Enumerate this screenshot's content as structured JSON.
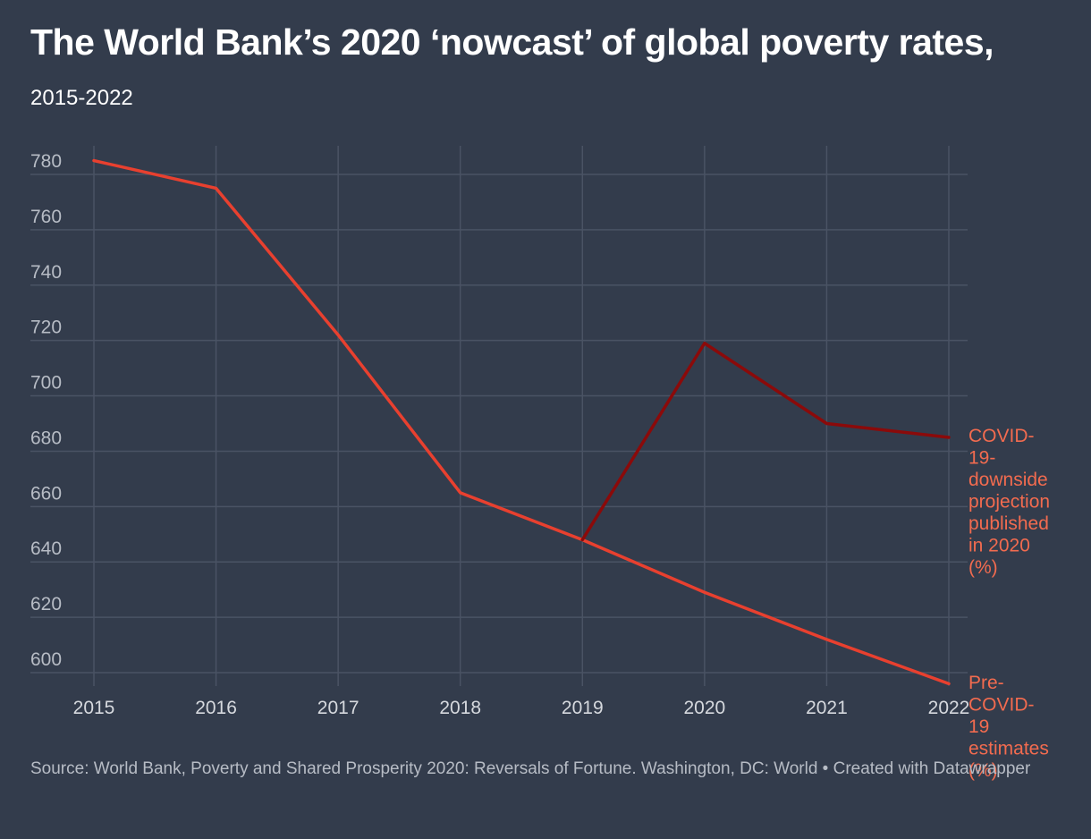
{
  "header": {
    "title": "The World Bank’s 2020 ‘nowcast’ of global poverty rates,",
    "subtitle": "2015-2022"
  },
  "footer": {
    "source": "Source: World Bank, Poverty and Shared Prosperity 2020: Reversals of Fortune. Washington, DC: World • Created with Datawrapper"
  },
  "colors": {
    "background": "#333c4c",
    "pre_covid_line": "#e8402f",
    "covid_line": "#8b0a0a",
    "label": "#f26b4f",
    "grid": "#4a5364"
  },
  "chart_data": {
    "type": "line",
    "x": [
      2015,
      2016,
      2017,
      2018,
      2019,
      2020,
      2021,
      2022
    ],
    "ylim": [
      596,
      790
    ],
    "yticks": [
      600,
      620,
      640,
      660,
      680,
      700,
      720,
      740,
      760,
      780
    ],
    "grid": true,
    "series": [
      {
        "name": "Pre-COVID-19 estimates (%)",
        "label_lines": [
          "Pre-",
          "COVID-",
          "19",
          "estimates",
          "(%)"
        ],
        "x": [
          2015,
          2016,
          2017,
          2018,
          2019,
          2020,
          2021,
          2022
        ],
        "values": [
          785,
          775,
          722,
          665,
          648,
          629,
          612,
          596
        ],
        "color": "#e8402f"
      },
      {
        "name": "COVID-19-downside projection published in 2020 (%)",
        "label_lines": [
          "COVID-",
          "19-",
          "downside",
          "projection",
          "published",
          "in 2020",
          "(%)"
        ],
        "x": [
          2019,
          2020,
          2021,
          2022
        ],
        "values": [
          648,
          719,
          690,
          685
        ],
        "color": "#8b0a0a"
      }
    ]
  }
}
